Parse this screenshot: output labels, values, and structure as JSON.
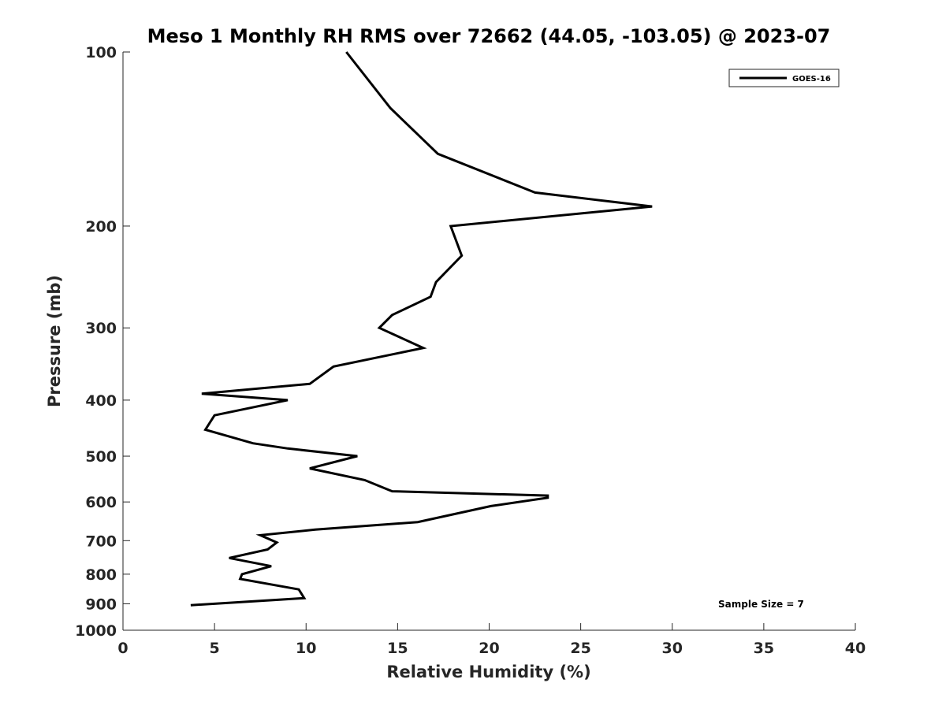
{
  "chart_data": {
    "type": "line",
    "title": "Meso 1 Monthly RH RMS over 72662 (44.05, -103.05) @ 2023-07",
    "xlabel": "Relative Humidity (%)",
    "ylabel": "Pressure (mb)",
    "xlim": [
      0,
      40
    ],
    "ylim": [
      100,
      1000
    ],
    "y_scale": "log",
    "y_inverted": true,
    "x_ticks": [
      "0",
      "5",
      "10",
      "15",
      "20",
      "25",
      "30",
      "35",
      "40"
    ],
    "y_ticks": [
      "100",
      "200",
      "300",
      "400",
      "500",
      "600",
      "700",
      "800",
      "900",
      "1000"
    ],
    "grid": false,
    "legend_position": "top-right",
    "series": [
      {
        "name": "GOES-16",
        "color": "#000000",
        "x": [
          12.2,
          14.6,
          17.2,
          22.5,
          28.9,
          17.9,
          18.5,
          17.1,
          16.8,
          14.7,
          14.0,
          16.4,
          11.5,
          10.2,
          4.3,
          9.0,
          5.0,
          4.5,
          7.1,
          9.0,
          12.8,
          10.2,
          13.2,
          14.7,
          23.2,
          23.2,
          20.1,
          16.1,
          10.5,
          7.5,
          8.4,
          7.9,
          5.8,
          8.1,
          6.5,
          6.4,
          9.6,
          9.9,
          3.7
        ],
        "y": [
          100,
          125,
          150,
          175,
          185,
          200,
          225,
          250,
          265,
          285,
          300,
          325,
          350,
          375,
          390,
          400,
          425,
          450,
          475,
          485,
          500,
          525,
          550,
          575,
          585,
          590,
          610,
          650,
          670,
          685,
          705,
          725,
          750,
          775,
          800,
          815,
          850,
          880,
          905
        ]
      }
    ],
    "annotations": [
      "Sample Size = 7"
    ]
  }
}
